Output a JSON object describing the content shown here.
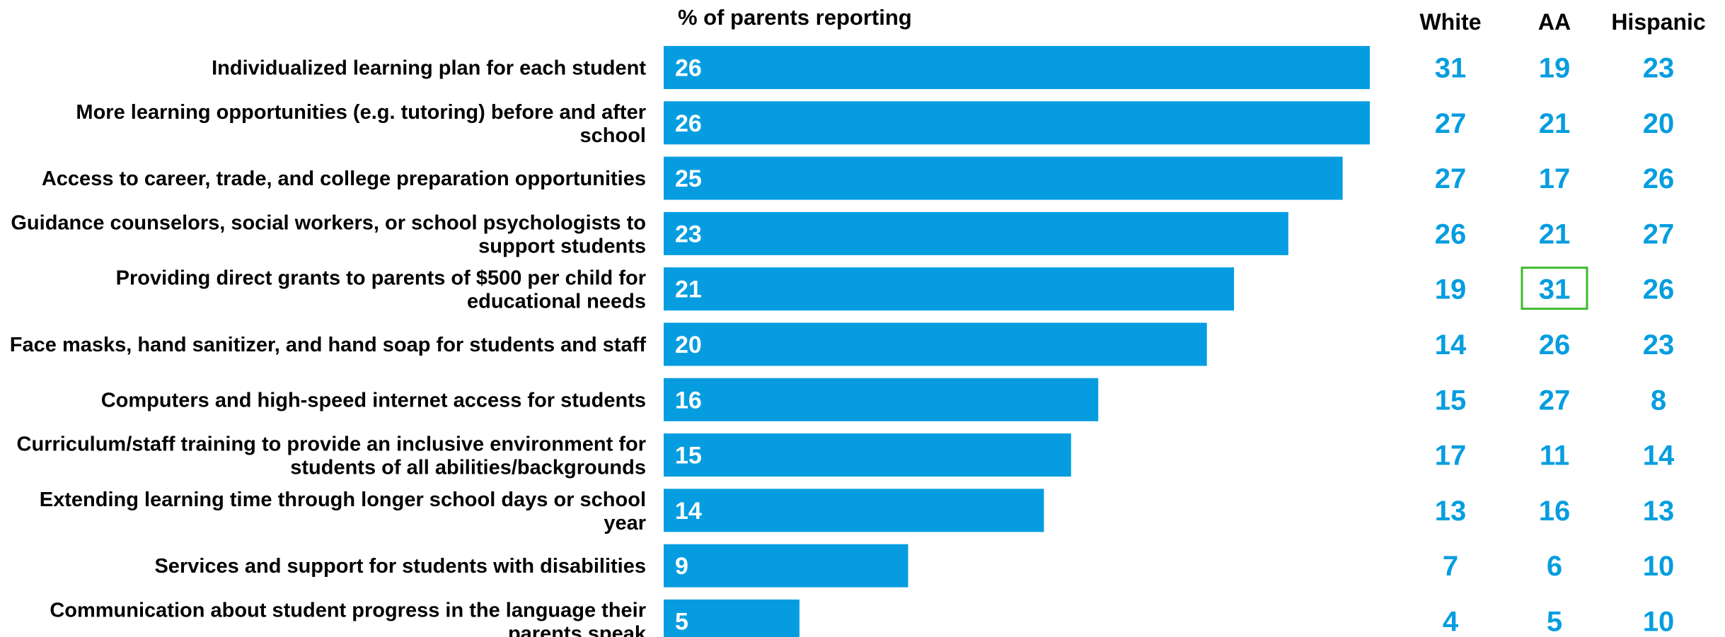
{
  "chart_data": {
    "type": "bar",
    "orientation": "horizontal",
    "title": "% of parents reporting",
    "categories": [
      "Individualized learning plan for each student",
      "More learning opportunities (e.g. tutoring) before and after school",
      "Access to career, trade, and college preparation opportunities",
      "Guidance counselors, social workers, or school psychologists to support students",
      "Providing direct grants to parents of $500 per child for educational needs",
      "Face masks, hand sanitizer, and hand soap for students and staff",
      "Computers and high-speed internet access for students",
      "Curriculum/staff training to provide an inclusive environment for students of all abilities/backgrounds",
      "Extending learning time through longer school days or school year",
      "Services and support for students with disabilities",
      "Communication about student progress in the language their parents speak"
    ],
    "values": [
      26,
      26,
      25,
      23,
      21,
      20,
      16,
      15,
      14,
      9,
      5
    ],
    "xlim": [
      0,
      26
    ],
    "grid": false,
    "legend": "none",
    "bar_color": "#069de0",
    "highlight_color": "#3db82e",
    "value_color": "#069de0",
    "breakdown": {
      "columns": [
        "White",
        "AA",
        "Hispanic"
      ],
      "values": [
        [
          31,
          19,
          23
        ],
        [
          27,
          21,
          20
        ],
        [
          27,
          17,
          26
        ],
        [
          26,
          21,
          27
        ],
        [
          19,
          31,
          26
        ],
        [
          14,
          26,
          23
        ],
        [
          15,
          27,
          8
        ],
        [
          17,
          11,
          14
        ],
        [
          13,
          16,
          13
        ],
        [
          7,
          6,
          10
        ],
        [
          4,
          5,
          10
        ]
      ],
      "highlighted": [
        [
          4,
          1
        ]
      ]
    }
  }
}
